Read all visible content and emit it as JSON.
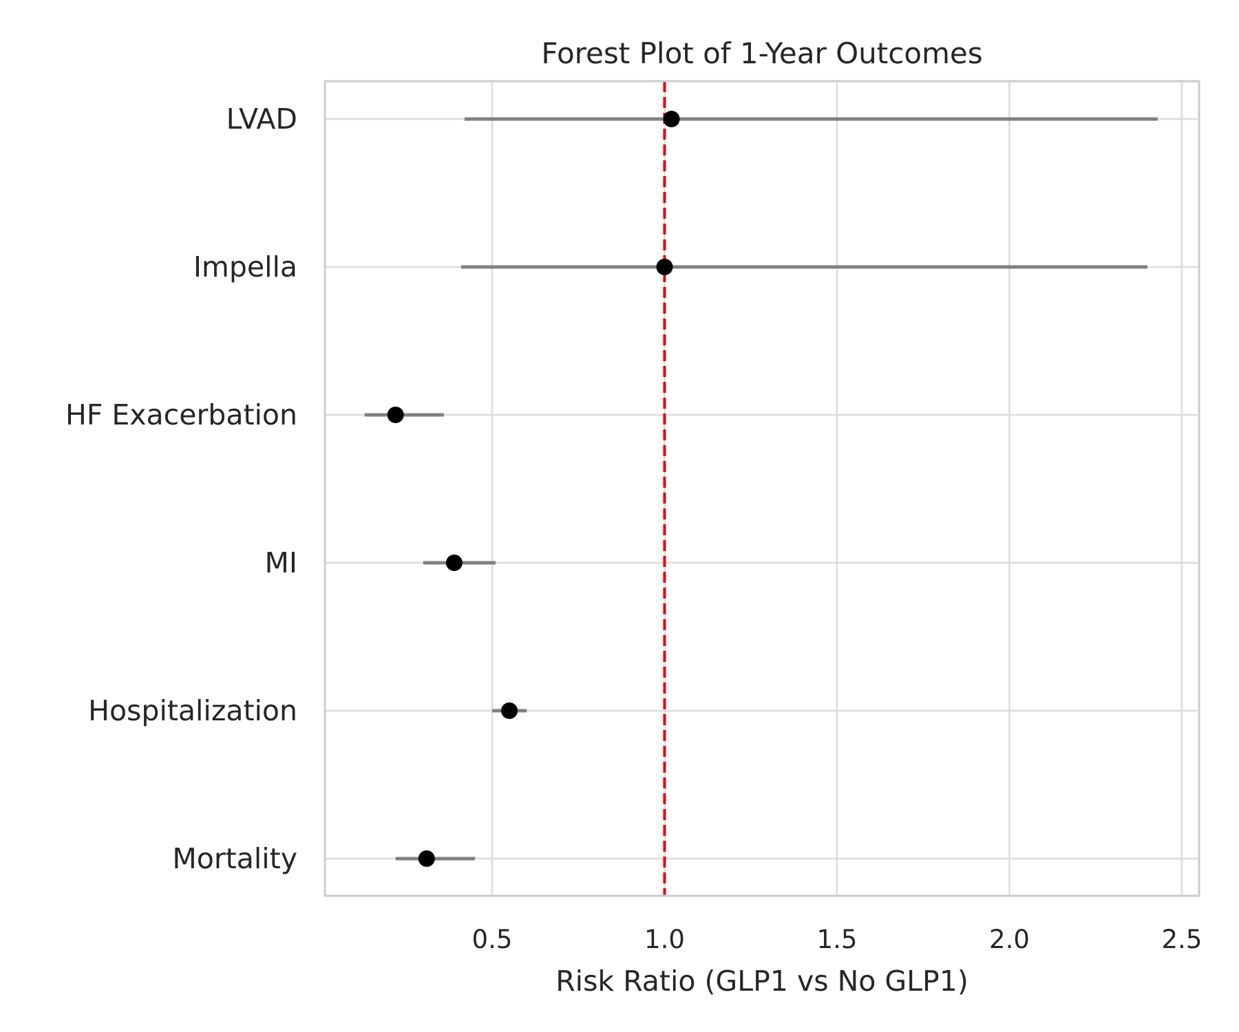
{
  "chart_data": {
    "type": "forest",
    "title": "Forest Plot of 1-Year Outcomes",
    "xlabel": "Risk Ratio (GLP1 vs No GLP1)",
    "ylabel": "",
    "xlim": [
      0.015,
      2.55
    ],
    "xticks": [
      0.5,
      1.0,
      1.5,
      2.0,
      2.5
    ],
    "xtick_labels": [
      "0.5",
      "1.0",
      "1.5",
      "2.0",
      "2.5"
    ],
    "grid": true,
    "reference_line": {
      "x": 1.0,
      "color": "#e8000b",
      "style": "dashed"
    },
    "categories": [
      "LVAD",
      "Impella",
      "HF Exacerbation",
      "MI",
      "Hospitalization",
      "Mortality"
    ],
    "estimates": [
      1.02,
      1.0,
      0.22,
      0.39,
      0.55,
      0.31
    ],
    "ci_lower": [
      0.42,
      0.41,
      0.13,
      0.3,
      0.5,
      0.22
    ],
    "ci_upper": [
      2.43,
      2.4,
      0.36,
      0.51,
      0.6,
      0.45
    ],
    "colors": {
      "point": "#000000",
      "ci": "#808080",
      "grid": "#dcdcdc",
      "spine": "#cccccc"
    }
  }
}
